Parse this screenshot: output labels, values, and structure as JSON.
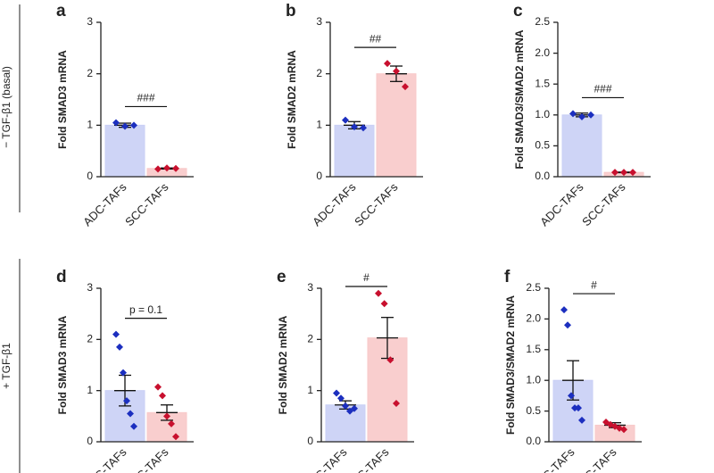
{
  "row_labels": [
    "− TGF-β1 (basal)",
    "+ TGF-β1"
  ],
  "chart_data": [
    {
      "type": "bar",
      "panel": "a",
      "ylabel": "Fold SMAD3 mRNA",
      "categories": [
        "ADC-TAFs",
        "SCC-TAFs"
      ],
      "values": [
        1.0,
        0.16
      ],
      "errors": [
        0.04,
        0.01
      ],
      "points": [
        [
          1.05,
          0.98,
          1.0
        ],
        [
          0.15,
          0.17,
          0.16
        ]
      ],
      "colors": [
        "#c9cff5",
        "#f8c9c9"
      ],
      "point_colors": [
        "#1c2fbf",
        "#c8102e"
      ],
      "ylim": [
        0,
        3
      ],
      "yticks": [
        0,
        1,
        2,
        3
      ],
      "significance": "###"
    },
    {
      "type": "bar",
      "panel": "b",
      "ylabel": "Fold SMAD2 mRNA",
      "categories": [
        "ADC-TAFs",
        "SCC-TAFs"
      ],
      "values": [
        1.0,
        2.0
      ],
      "errors": [
        0.07,
        0.15
      ],
      "points": [
        [
          1.1,
          0.97,
          0.95
        ],
        [
          2.2,
          2.05,
          1.75
        ]
      ],
      "colors": [
        "#c9cff5",
        "#f8c9c9"
      ],
      "point_colors": [
        "#1c2fbf",
        "#c8102e"
      ],
      "ylim": [
        0,
        3
      ],
      "yticks": [
        0,
        1,
        2,
        3
      ],
      "significance": "##"
    },
    {
      "type": "bar",
      "panel": "c",
      "ylabel": "Fold SMAD3/SMAD2 mRNA",
      "categories": [
        "ADC-TAFs",
        "SCC-TAFs"
      ],
      "values": [
        1.0,
        0.07
      ],
      "errors": [
        0.03,
        0.005
      ],
      "points": [
        [
          1.02,
          0.97,
          1.0
        ],
        [
          0.07,
          0.07,
          0.07
        ]
      ],
      "colors": [
        "#c9cff5",
        "#f8c9c9"
      ],
      "point_colors": [
        "#1c2fbf",
        "#c8102e"
      ],
      "ylim": [
        0,
        2.5
      ],
      "yticks": [
        {
          "value": 0,
          "label": "0.0"
        },
        0.5,
        {
          "value": 1,
          "label": "1.0"
        },
        1.5,
        {
          "value": 2,
          "label": "2.0"
        },
        2.5
      ],
      "significance": "###"
    },
    {
      "type": "bar",
      "panel": "d",
      "ylabel": "Fold SMAD3 mRNA",
      "categories": [
        "ADC-TAFs",
        "SCC-TAFs"
      ],
      "values": [
        1.0,
        0.57
      ],
      "errors": [
        0.3,
        0.15
      ],
      "points": [
        [
          2.1,
          1.85,
          1.35,
          0.8,
          0.55,
          0.3
        ],
        [
          1.07,
          0.9,
          0.5,
          0.35,
          0.1
        ]
      ],
      "colors": [
        "#c9cff5",
        "#f8c9c9"
      ],
      "point_colors": [
        "#1c2fbf",
        "#c8102e"
      ],
      "ylim": [
        0,
        3
      ],
      "yticks": [
        0,
        1,
        2,
        3
      ],
      "significance": "p = 0.1"
    },
    {
      "type": "bar",
      "panel": "e",
      "ylabel": "Fold SMAD2 mRNA",
      "categories": [
        "ADC-TAFs",
        "SCC-TAFs"
      ],
      "values": [
        0.72,
        2.03
      ],
      "errors": [
        0.08,
        0.4
      ],
      "points": [
        [
          0.95,
          0.85,
          0.7,
          0.6,
          0.65
        ],
        [
          2.9,
          2.7,
          1.6,
          0.75
        ]
      ],
      "colors": [
        "#c9cff5",
        "#f8c9c9"
      ],
      "point_colors": [
        "#1c2fbf",
        "#c8102e"
      ],
      "ylim": [
        0,
        3
      ],
      "yticks": [
        0,
        1,
        2,
        3
      ],
      "significance": "#"
    },
    {
      "type": "bar",
      "panel": "f",
      "ylabel": "Fold SMAD3/SMAD2 mRNA",
      "categories": [
        "ADC-TAFs",
        "SCC-TAFs"
      ],
      "values": [
        1.0,
        0.27
      ],
      "errors": [
        0.32,
        0.04
      ],
      "points": [
        [
          2.15,
          1.9,
          0.75,
          0.55,
          0.55,
          0.35
        ],
        [
          0.32,
          0.28,
          0.25,
          0.22,
          0.2
        ]
      ],
      "colors": [
        "#c9cff5",
        "#f8c9c9"
      ],
      "point_colors": [
        "#1c2fbf",
        "#c8102e"
      ],
      "ylim": [
        0,
        2.5
      ],
      "yticks": [
        {
          "value": 0,
          "label": "0.0"
        },
        0.5,
        {
          "value": 1,
          "label": "1.0"
        },
        1.5,
        {
          "value": 2,
          "label": "2.0"
        },
        2.5
      ],
      "significance": "#"
    }
  ]
}
